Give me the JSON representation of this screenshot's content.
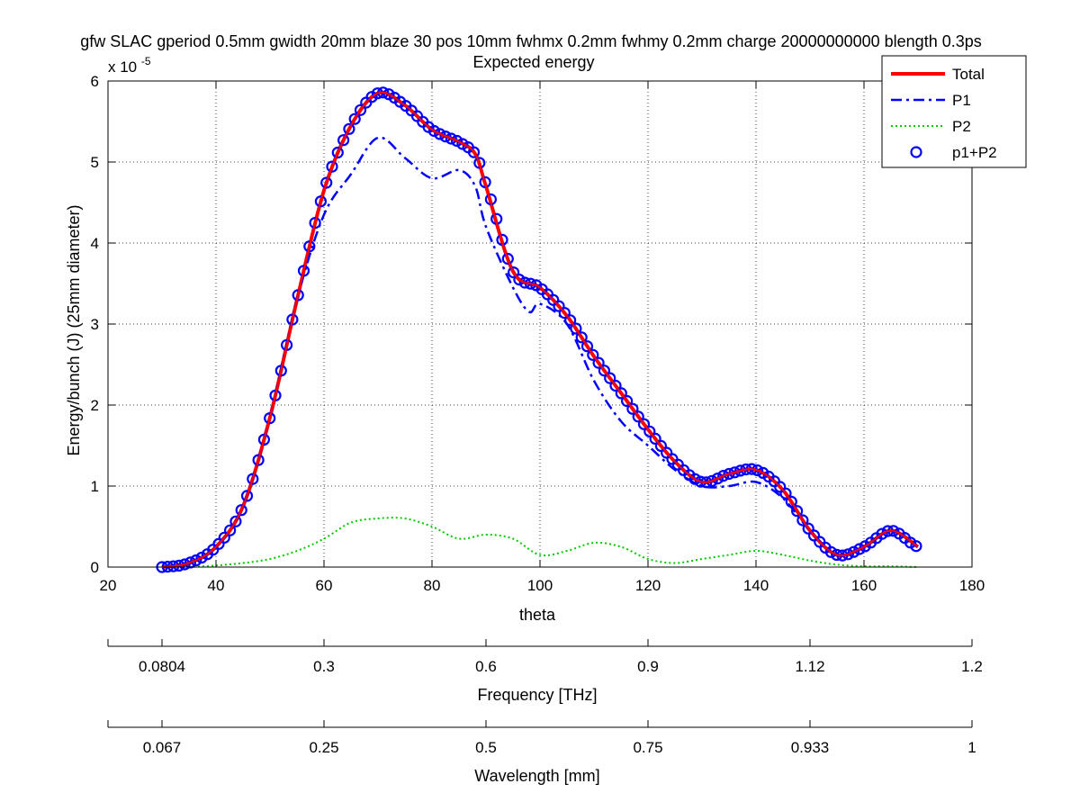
{
  "chart_data": {
    "type": "line",
    "title": "gfw SLAC gperiod 0.5mm gwidth 20mm blaze 30 pos 10mm fwhmx 0.2mm fwhmy 0.2mm charge 20000000000 blength 0.3ps",
    "subtitle": "Expected energy",
    "xlabel": "theta",
    "ylabel": "Energy/bunch (J) (25mm diameter)",
    "y_exponent_label": "x 10",
    "y_exponent_power": "-5",
    "xlim": [
      20,
      180
    ],
    "ylim": [
      0,
      6
    ],
    "y_scale_note": "values in units of 1e-5 J",
    "grid": true,
    "legend_position": "top-right",
    "x_ticks": [
      "20",
      "40",
      "60",
      "80",
      "100",
      "120",
      "140",
      "160",
      "180"
    ],
    "y_ticks": [
      "0",
      "1",
      "2",
      "3",
      "4",
      "5",
      "6"
    ],
    "secondary_axes": [
      {
        "label": "Frequency [THz]",
        "ticks": [
          {
            "theta": 30,
            "label": "0.0804"
          },
          {
            "theta": 60,
            "label": "0.3"
          },
          {
            "theta": 90,
            "label": "0.6"
          },
          {
            "theta": 120,
            "label": "0.9"
          },
          {
            "theta": 150,
            "label": "1.12"
          },
          {
            "theta": 180,
            "label": "1.2"
          }
        ]
      },
      {
        "label": "Wavelength [mm]",
        "ticks": [
          {
            "theta": 30,
            "label": "0.067"
          },
          {
            "theta": 60,
            "label": "0.25"
          },
          {
            "theta": 90,
            "label": "0.5"
          },
          {
            "theta": 120,
            "label": "0.75"
          },
          {
            "theta": 150,
            "label": "0.933"
          },
          {
            "theta": 180,
            "label": "1"
          }
        ]
      }
    ],
    "series": [
      {
        "name": "Total",
        "style": "solid",
        "color": "#ff0000",
        "x": [
          30,
          35,
          40,
          45,
          50,
          55,
          60,
          65,
          70,
          75,
          80,
          85,
          88,
          90,
          95,
          100,
          105,
          110,
          115,
          120,
          125,
          130,
          135,
          140,
          145,
          150,
          155,
          160,
          165,
          170
        ],
        "values": [
          0.0,
          0.05,
          0.25,
          0.75,
          1.85,
          3.3,
          4.65,
          5.45,
          5.85,
          5.7,
          5.4,
          5.25,
          5.1,
          4.7,
          3.65,
          3.45,
          3.1,
          2.6,
          2.15,
          1.7,
          1.3,
          1.05,
          1.15,
          1.2,
          0.95,
          0.45,
          0.15,
          0.25,
          0.45,
          0.25
        ]
      },
      {
        "name": "P1",
        "style": "dashdot",
        "color": "#0000ff",
        "x": [
          30,
          35,
          40,
          45,
          50,
          55,
          60,
          65,
          70,
          75,
          80,
          85,
          88,
          90,
          95,
          98,
          100,
          105,
          110,
          115,
          120,
          125,
          130,
          135,
          140,
          145,
          150,
          155,
          160,
          165,
          170
        ],
        "values": [
          0.0,
          0.05,
          0.25,
          0.75,
          1.85,
          3.3,
          4.35,
          4.85,
          5.3,
          5.05,
          4.8,
          4.9,
          4.7,
          4.2,
          3.45,
          3.15,
          3.25,
          3.0,
          2.3,
          1.8,
          1.5,
          1.2,
          1.0,
          1.0,
          1.05,
          0.85,
          0.45,
          0.15,
          0.25,
          0.45,
          0.25
        ]
      },
      {
        "name": "P2",
        "style": "dotted",
        "color": "#00cc00",
        "x": [
          35,
          40,
          45,
          50,
          55,
          60,
          65,
          70,
          75,
          80,
          85,
          90,
          95,
          100,
          105,
          110,
          115,
          120,
          125,
          130,
          135,
          140,
          145,
          150,
          155,
          160,
          165,
          170
        ],
        "values": [
          0.0,
          0.02,
          0.05,
          0.1,
          0.2,
          0.35,
          0.55,
          0.6,
          0.6,
          0.5,
          0.35,
          0.4,
          0.35,
          0.15,
          0.2,
          0.3,
          0.25,
          0.1,
          0.05,
          0.1,
          0.15,
          0.2,
          0.15,
          0.08,
          0.03,
          0.01,
          0.01,
          0.0
        ]
      },
      {
        "name": "p1+P2",
        "style": "circle-markers",
        "color": "#0000ff",
        "x": [
          30,
          35,
          40,
          45,
          50,
          55,
          60,
          65,
          70,
          75,
          80,
          85,
          88,
          90,
          95,
          100,
          105,
          110,
          115,
          120,
          125,
          130,
          135,
          140,
          145,
          150,
          155,
          160,
          165,
          170
        ],
        "values": [
          0.0,
          0.05,
          0.25,
          0.75,
          1.85,
          3.3,
          4.65,
          5.45,
          5.85,
          5.7,
          5.4,
          5.25,
          5.1,
          4.7,
          3.65,
          3.45,
          3.1,
          2.6,
          2.15,
          1.7,
          1.3,
          1.05,
          1.15,
          1.2,
          0.95,
          0.45,
          0.15,
          0.25,
          0.45,
          0.25
        ]
      }
    ]
  }
}
